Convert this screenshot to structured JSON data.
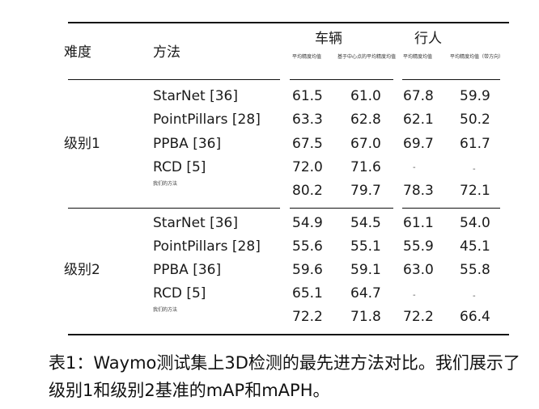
{
  "header": {
    "difficulty": "难度",
    "method": "方法",
    "vehicle": "车辆",
    "pedestrian": "行人",
    "sub": [
      "平均精度均值",
      "基于中心点的平均精度均值",
      "平均精度均值",
      "平均精度均值（带方向）"
    ]
  },
  "groups": [
    {
      "level": "级别1",
      "rows": [
        {
          "method": "StarNet [36]",
          "values": [
            "61.5",
            "61.0",
            "67.8",
            "59.9"
          ]
        },
        {
          "method": "PointPillars [28]",
          "values": [
            "63.3",
            "62.8",
            "62.1",
            "50.2"
          ]
        },
        {
          "method": "PPBA [36]",
          "values": [
            "67.5",
            "67.0",
            "69.7",
            "61.7"
          ]
        },
        {
          "method": "RCD [5]",
          "values": [
            "72.0",
            "71.6",
            "-",
            "-"
          ]
        },
        {
          "method": "我们的方法",
          "values": [
            "80.2",
            "79.7",
            "78.3",
            "72.1"
          ]
        }
      ]
    },
    {
      "level": "级别2",
      "rows": [
        {
          "method": "StarNet [36]",
          "values": [
            "54.9",
            "54.5",
            "61.1",
            "54.0"
          ]
        },
        {
          "method": "PointPillars [28]",
          "values": [
            "55.6",
            "55.1",
            "55.9",
            "45.1"
          ]
        },
        {
          "method": "PPBA [36]",
          "values": [
            "59.6",
            "59.1",
            "63.0",
            "55.8"
          ]
        },
        {
          "method": "RCD [5]",
          "values": [
            "65.1",
            "64.7",
            "-",
            "-"
          ]
        },
        {
          "method": "我们的方法",
          "values": [
            "72.2",
            "71.8",
            "72.2",
            "66.4"
          ]
        }
      ]
    }
  ],
  "caption": "表1：Waymo测试集上3D检测的最先进方法对比。我们展示了级别1和级别2基准的mAP和mAPH。"
}
